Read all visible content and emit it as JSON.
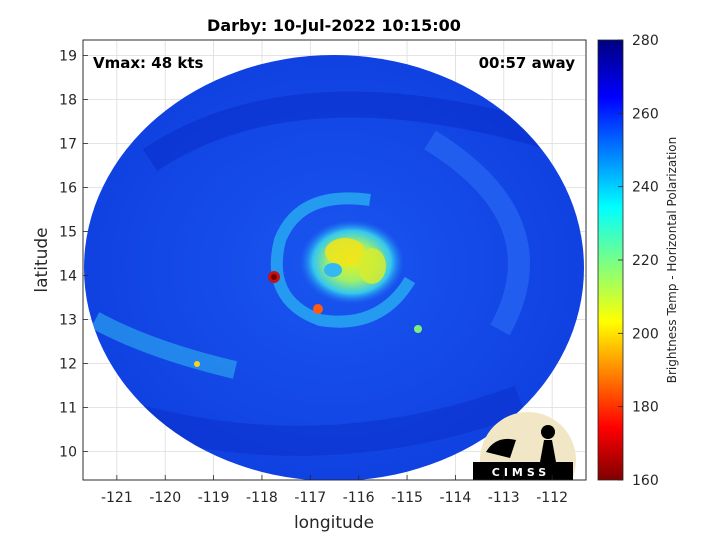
{
  "title": "Darby: 10-Jul-2022 10:15:00",
  "vmax_label": "Vmax: 48 kts",
  "away_label": "00:57 away",
  "xlabel": "longitude",
  "ylabel": "latitude",
  "logo_text": "CIMSS",
  "colorbar": {
    "label": "Brightness Temp - Horizontal Polarization",
    "min": 160,
    "max": 280,
    "ticks": [
      "160",
      "180",
      "200",
      "220",
      "240",
      "260",
      "280"
    ]
  },
  "chart_data": {
    "type": "heatmap",
    "title": "Darby: 10-Jul-2022 10:15:00",
    "xlabel": "longitude",
    "ylabel": "latitude",
    "xlim": [
      -121.7,
      -111.3
    ],
    "ylim": [
      9.35,
      19.35
    ],
    "x_ticks": [
      "-121",
      "-120",
      "-119",
      "-118",
      "-117",
      "-116",
      "-115",
      "-114",
      "-113",
      "-112"
    ],
    "y_ticks": [
      "10",
      "11",
      "12",
      "13",
      "14",
      "15",
      "16",
      "17",
      "18",
      "19"
    ],
    "grid": true,
    "colormap": "jet",
    "color_range": [
      160,
      280
    ],
    "colorbar_label": "Brightness Temp - Horizontal Polarization",
    "storm_center": [
      -116.1,
      14.3
    ],
    "annotations": [
      "Vmax: 48 kts",
      "00:57 away"
    ]
  }
}
